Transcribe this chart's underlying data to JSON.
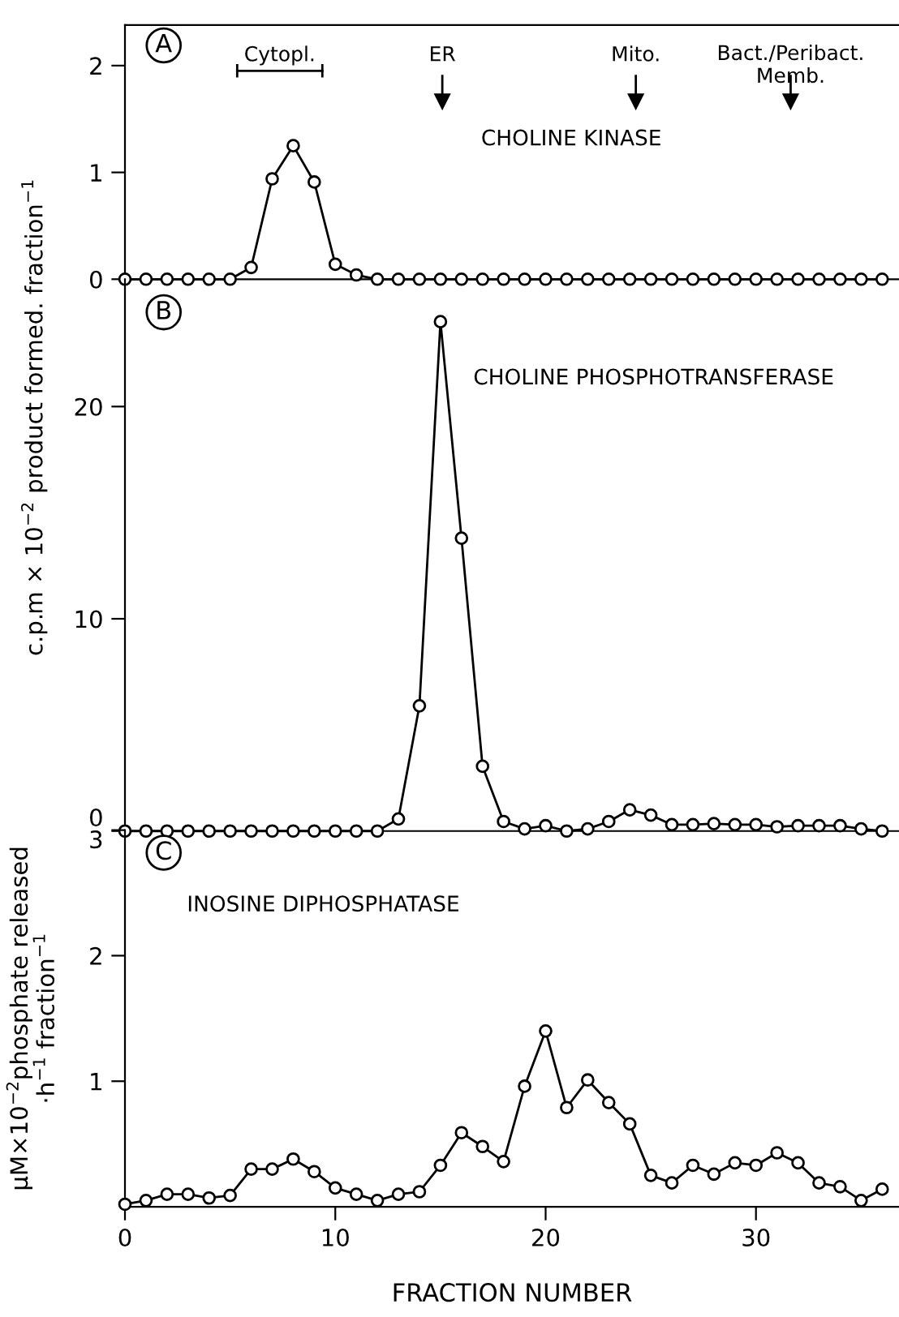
{
  "chart_data": [
    {
      "type": "line",
      "title": "CHOLINE KINASE",
      "x": [
        0,
        1,
        2,
        3,
        4,
        5,
        6,
        7,
        8,
        9,
        10,
        11,
        12,
        13,
        14,
        15,
        16,
        17,
        18,
        19,
        20,
        21,
        22,
        23,
        24,
        25,
        26,
        27,
        28,
        29,
        30,
        31,
        32,
        33,
        34,
        35,
        36
      ],
      "series": [
        {
          "color": "#000000",
          "values": [
            0,
            0,
            0,
            0,
            0,
            0,
            0.11,
            0.94,
            1.25,
            0.91,
            0.14,
            0.04,
            0,
            0,
            0,
            0,
            0,
            0,
            0,
            0,
            0,
            0,
            0,
            0,
            0,
            0,
            0,
            0,
            0,
            0,
            0,
            0,
            0,
            0,
            0,
            0,
            0
          ]
        }
      ],
      "xlim": [
        0,
        36.8
      ],
      "ylim": [
        0,
        2.38
      ],
      "yticks": [
        0,
        1,
        2
      ],
      "tick_labels": "y",
      "marker": "circle",
      "line_style": "solid",
      "grid": false,
      "annotations": [
        "A",
        "Cytopl.",
        "ER",
        "Mito.",
        "Bact./Peribact.\nMemb."
      ]
    },
    {
      "type": "line",
      "title": "CHOLINE PHOSPHOTRANSFERASE",
      "ylabel": "c.p.m × 10$^{−2}$ product formed. fraction$^{−1}$",
      "x": [
        0,
        1,
        2,
        3,
        4,
        5,
        6,
        7,
        8,
        9,
        10,
        11,
        12,
        13,
        14,
        15,
        16,
        17,
        18,
        19,
        20,
        21,
        22,
        23,
        24,
        25,
        26,
        27,
        28,
        29,
        30,
        31,
        32,
        33,
        34,
        35,
        36
      ],
      "series": [
        {
          "color": "#000000",
          "values": [
            0,
            0,
            0,
            0,
            0,
            0,
            0,
            0,
            0,
            0,
            0,
            0,
            0,
            0.57,
            5.9,
            24,
            13.8,
            3.05,
            0.45,
            0.1,
            0.25,
            0,
            0.1,
            0.45,
            1.0,
            0.75,
            0.3,
            0.3,
            0.35,
            0.3,
            0.3,
            0.2,
            0.25,
            0.25,
            0.25,
            0.1,
            0
          ]
        }
      ],
      "xlim": [
        0,
        36.8
      ],
      "ylim": [
        0,
        26
      ],
      "yticks": [
        0,
        10,
        20
      ],
      "tick_labels": "y",
      "marker": "circle",
      "line_style": "solid",
      "grid": false,
      "annotations": [
        "B"
      ]
    },
    {
      "type": "line",
      "title": "INOSINE DIPHOSPHATASE",
      "xlabel": "FRACTION NUMBER",
      "ylabel": "μM×10$^{−2}$phosphate released\n·h$^{−1}$ fraction$^{−1}$",
      "x": [
        0,
        1,
        2,
        3,
        4,
        5,
        6,
        7,
        8,
        9,
        10,
        11,
        12,
        13,
        14,
        15,
        16,
        17,
        18,
        19,
        20,
        21,
        22,
        23,
        24,
        25,
        26,
        27,
        28,
        29,
        30,
        31,
        32,
        33,
        34,
        35,
        36
      ],
      "series": [
        {
          "color": "#000000",
          "values": [
            0.02,
            0.05,
            0.1,
            0.1,
            0.07,
            0.09,
            0.3,
            0.3,
            0.38,
            0.28,
            0.15,
            0.1,
            0.05,
            0.1,
            0.12,
            0.33,
            0.59,
            0.48,
            0.36,
            0.96,
            1.4,
            0.79,
            1.01,
            0.83,
            0.66,
            0.25,
            0.19,
            0.33,
            0.26,
            0.35,
            0.33,
            0.43,
            0.35,
            0.19,
            0.16,
            0.05,
            0.14
          ]
        }
      ],
      "xlim": [
        0,
        36.8
      ],
      "ylim": [
        0,
        3
      ],
      "yticks": [
        1,
        2,
        3
      ],
      "xticks": [
        0,
        10,
        20,
        30
      ],
      "marker": "circle",
      "line_style": "solid",
      "grid": false,
      "annotations": [
        "C"
      ]
    }
  ]
}
